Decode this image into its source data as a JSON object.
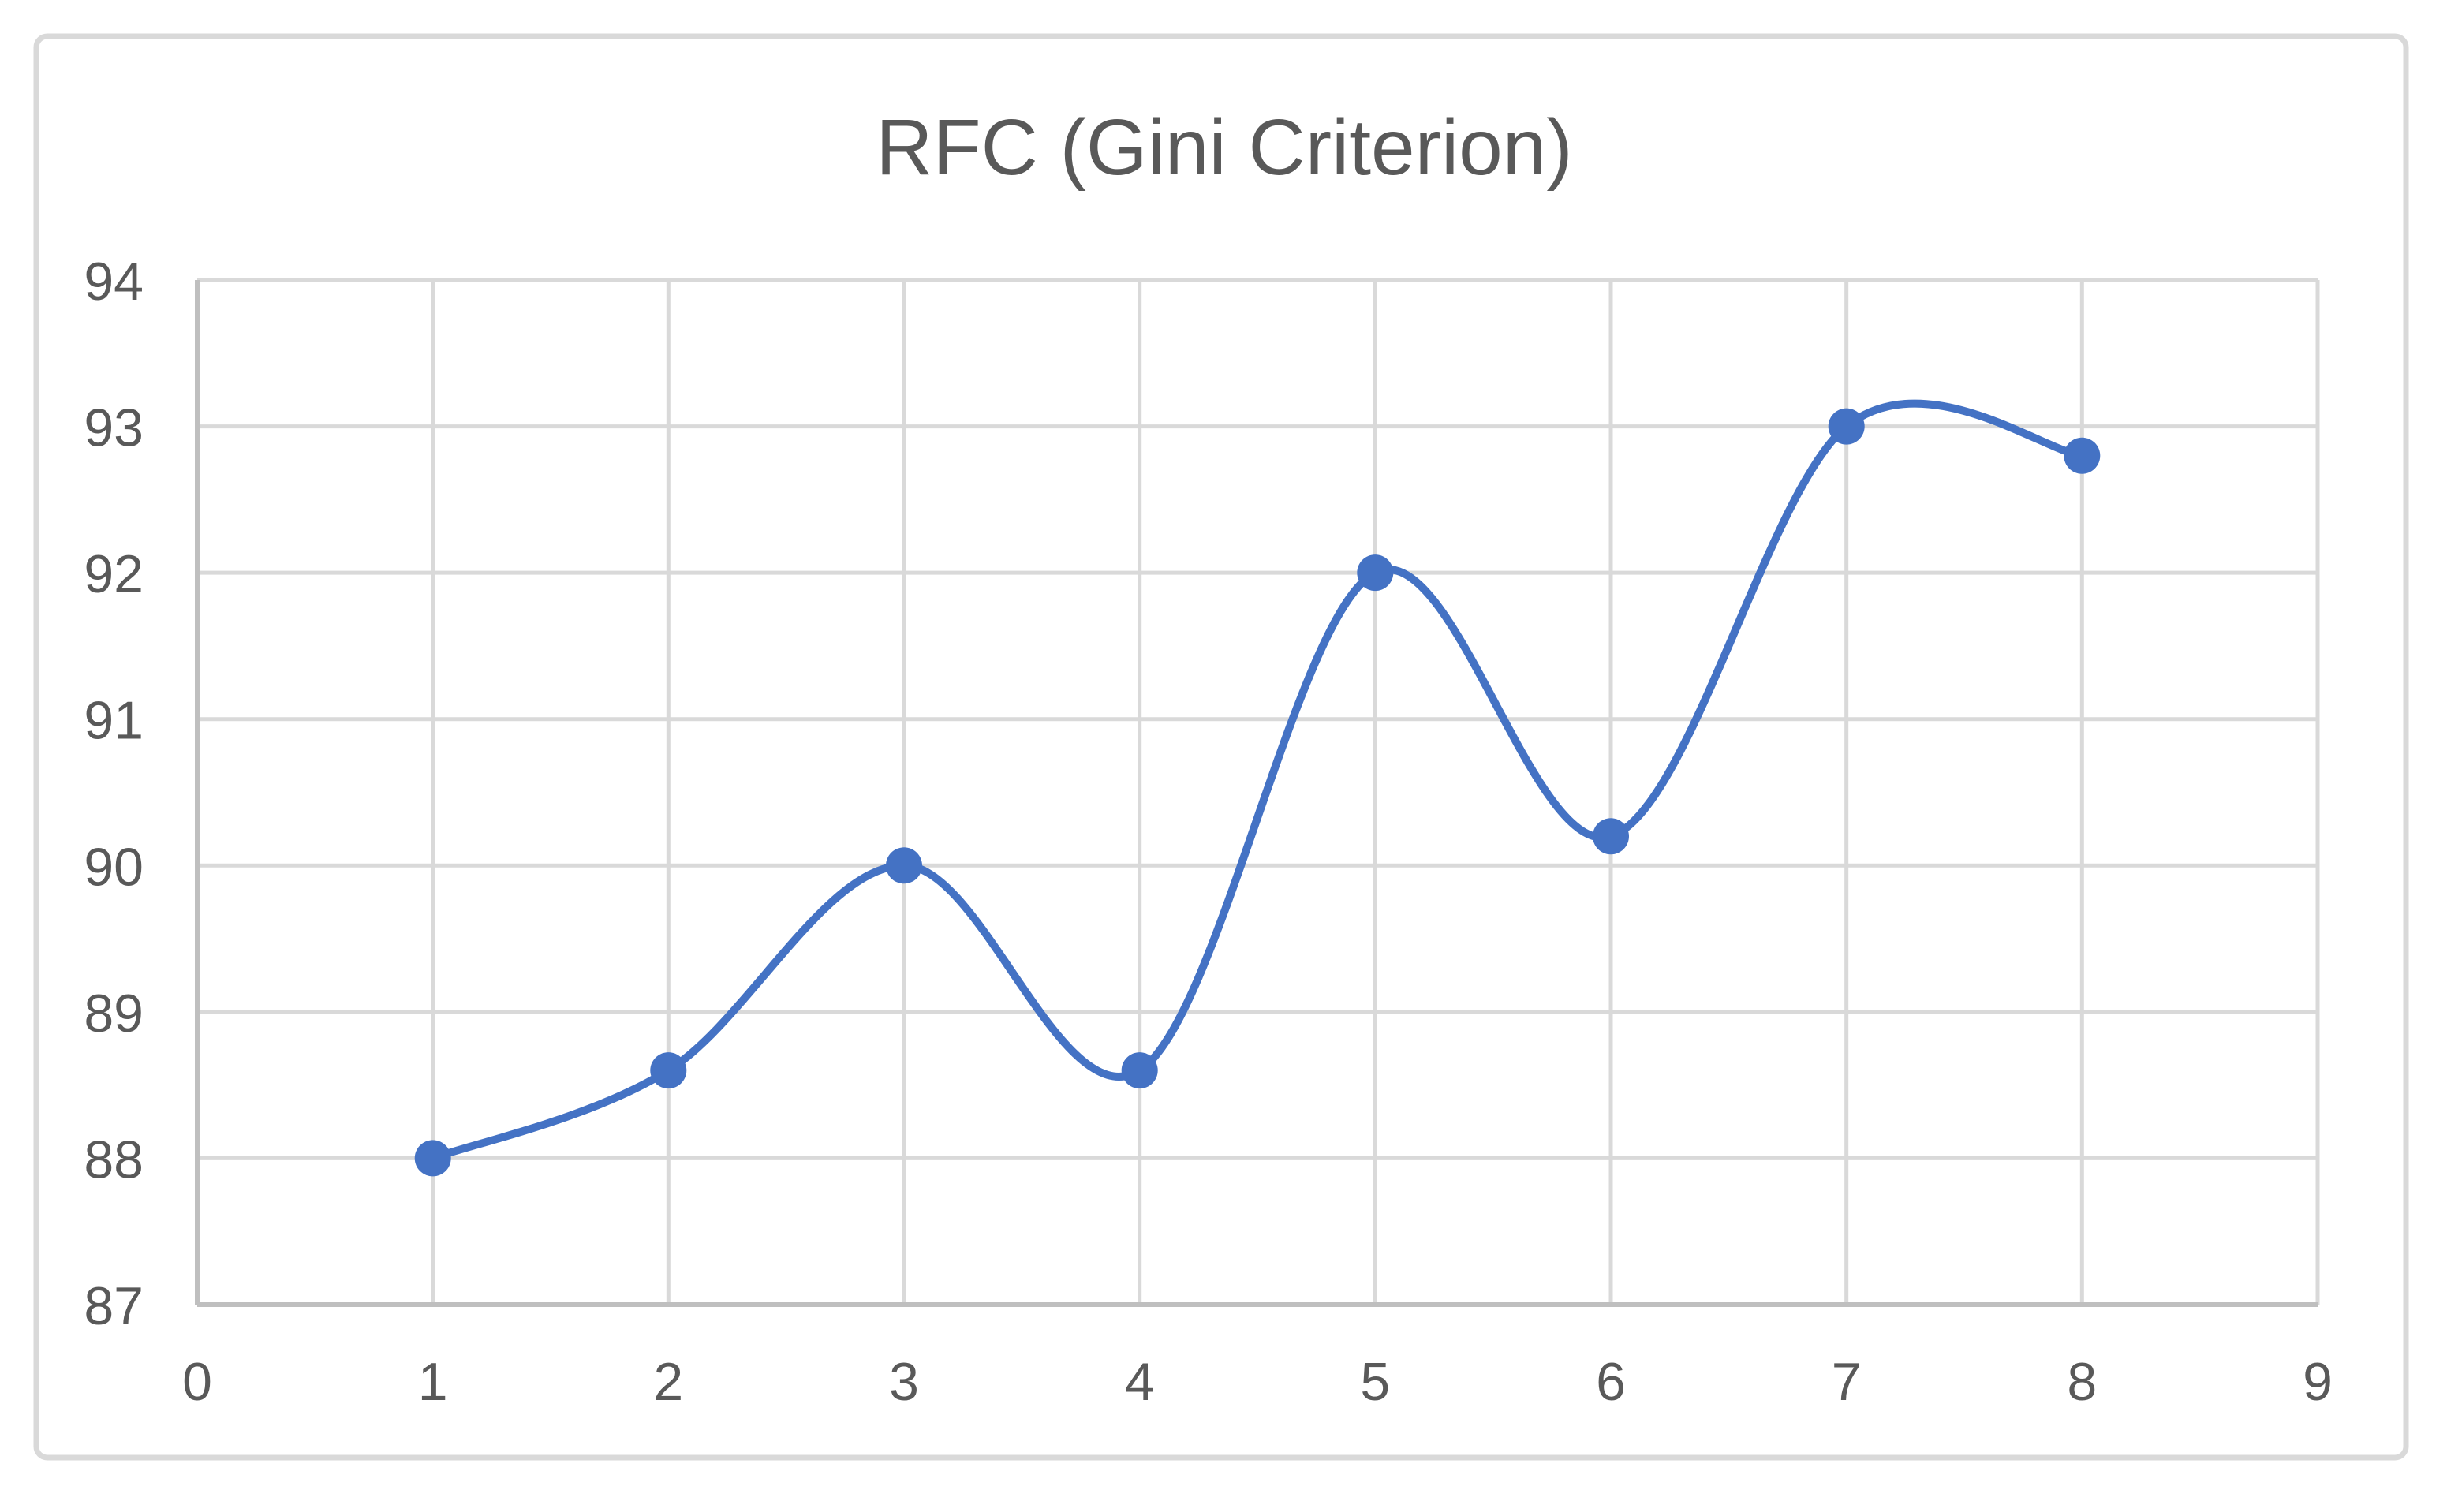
{
  "chart_data": {
    "type": "line",
    "title": "RFC (Gini Criterion)",
    "x": [
      1,
      2,
      3,
      4,
      5,
      6,
      7,
      8
    ],
    "y": [
      88.0,
      88.6,
      90.0,
      88.6,
      92.0,
      90.2,
      93.0,
      92.8
    ],
    "xlim": [
      0,
      9
    ],
    "ylim": [
      87,
      94
    ],
    "x_ticks": [
      0,
      1,
      2,
      3,
      4,
      5,
      6,
      7,
      8,
      9
    ],
    "y_ticks": [
      87,
      88,
      89,
      90,
      91,
      92,
      93,
      94
    ],
    "grid": true,
    "legend": false,
    "smooth": true,
    "marker": "circle",
    "colors": {
      "series": "#4472C4",
      "gridline": "#D9D9D9",
      "axis_line": "#BFBFBF",
      "tick_label": "#595959",
      "title": "#595959",
      "chart_border": "#D9D9D9",
      "background": "#FFFFFF"
    }
  }
}
